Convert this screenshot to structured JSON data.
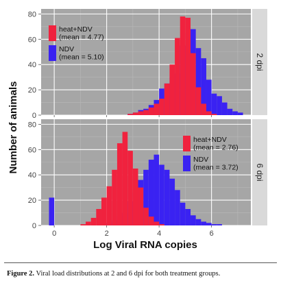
{
  "chart_data": {
    "type": "histogram",
    "ylabel": "Number of animals",
    "xlabel": "Log Viral RNA copies",
    "x_ticks": [
      "0",
      "2",
      "4",
      "6"
    ],
    "xlim": [
      -0.5,
      7.5
    ],
    "ylim": [
      0,
      84
    ],
    "y_ticks": [
      "0",
      "20",
      "40",
      "60",
      "80"
    ],
    "grid": true,
    "bin_width": 0.2,
    "panels": [
      {
        "strip": "2 dpi",
        "legend_position": "top-left",
        "series": [
          {
            "name": "heat+NDV\n(mean = 4.77)",
            "color": "#f0223e",
            "bins": [
              [
                2.8,
                1
              ],
              [
                3.0,
                2
              ],
              [
                3.2,
                3
              ],
              [
                3.4,
                4
              ],
              [
                3.6,
                6
              ],
              [
                3.8,
                9
              ],
              [
                4.0,
                13
              ],
              [
                4.2,
                25
              ],
              [
                4.4,
                40
              ],
              [
                4.6,
                61
              ],
              [
                4.8,
                78
              ],
              [
                5.0,
                77
              ],
              [
                5.2,
                49
              ],
              [
                5.4,
                22
              ],
              [
                5.6,
                9
              ],
              [
                5.8,
                3
              ],
              [
                6.0,
                1
              ]
            ]
          },
          {
            "name": "NDV\n(mean = 5.10)",
            "color": "#3a22f2",
            "bins": [
              [
                2.8,
                1
              ],
              [
                3.0,
                2
              ],
              [
                3.2,
                4
              ],
              [
                3.4,
                5
              ],
              [
                3.6,
                8
              ],
              [
                3.8,
                12
              ],
              [
                4.0,
                21
              ],
              [
                4.2,
                25
              ],
              [
                4.4,
                30
              ],
              [
                4.6,
                33
              ],
              [
                4.8,
                55
              ],
              [
                5.0,
                65
              ],
              [
                5.2,
                68
              ],
              [
                5.4,
                53
              ],
              [
                5.6,
                45
              ],
              [
                5.8,
                28
              ],
              [
                6.0,
                17
              ],
              [
                6.2,
                15
              ],
              [
                6.4,
                10
              ],
              [
                6.6,
                5
              ],
              [
                6.8,
                3
              ],
              [
                7.0,
                2
              ]
            ]
          }
        ]
      },
      {
        "strip": "6 dpi",
        "legend_position": "top-right",
        "series": [
          {
            "name": "heat+NDV\n(mean = 2.76)",
            "color": "#f0223e",
            "bins": [
              [
                1.0,
                1
              ],
              [
                1.2,
                3
              ],
              [
                1.4,
                6
              ],
              [
                1.6,
                13
              ],
              [
                1.8,
                22
              ],
              [
                2.0,
                31
              ],
              [
                2.2,
                44
              ],
              [
                2.4,
                65
              ],
              [
                2.6,
                74
              ],
              [
                2.8,
                59
              ],
              [
                3.0,
                45
              ],
              [
                3.2,
                30
              ],
              [
                3.4,
                14
              ],
              [
                3.6,
                7
              ],
              [
                3.8,
                3
              ],
              [
                4.0,
                1
              ]
            ]
          },
          {
            "name": "NDV\n(mean = 3.72)",
            "color": "#3a22f2",
            "bins": [
              [
                -0.2,
                22
              ],
              [
                2.0,
                2
              ],
              [
                2.2,
                4
              ],
              [
                2.4,
                8
              ],
              [
                2.6,
                10
              ],
              [
                2.8,
                19
              ],
              [
                3.0,
                26
              ],
              [
                3.2,
                36
              ],
              [
                3.4,
                44
              ],
              [
                3.6,
                52
              ],
              [
                3.8,
                56
              ],
              [
                4.0,
                48
              ],
              [
                4.2,
                44
              ],
              [
                4.4,
                37
              ],
              [
                4.6,
                28
              ],
              [
                4.8,
                18
              ],
              [
                5.0,
                13
              ],
              [
                5.2,
                8
              ],
              [
                5.4,
                5
              ],
              [
                5.6,
                3
              ],
              [
                5.8,
                2
              ],
              [
                6.0,
                1
              ],
              [
                6.2,
                1
              ]
            ]
          }
        ]
      }
    ]
  },
  "caption": {
    "label": "Figure 2.",
    "text": "Viral load distributions at 2 and 6 dpi for both treatment groups."
  }
}
